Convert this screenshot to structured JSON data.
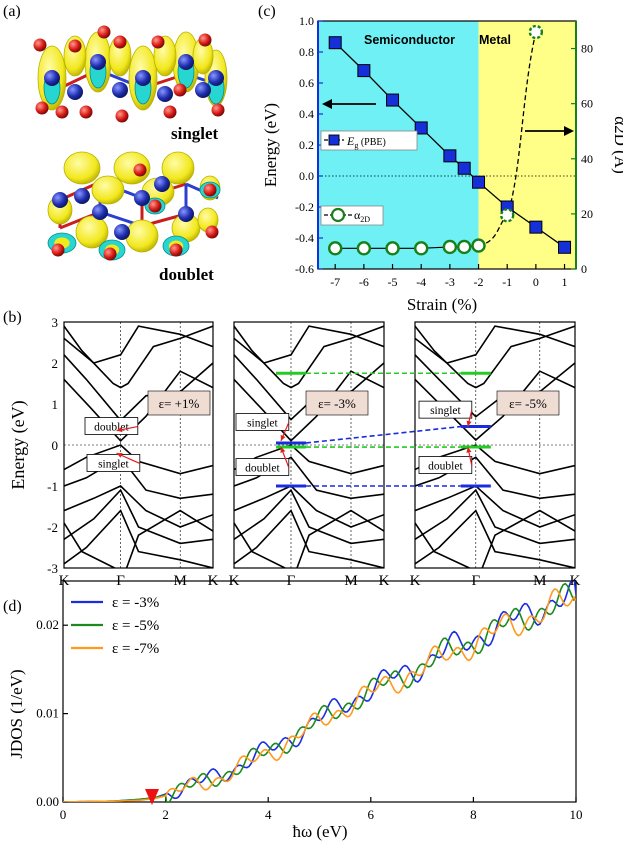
{
  "panels": {
    "a": {
      "label": "(a)",
      "state_labels": [
        "singlet",
        "doublet"
      ],
      "colors": {
        "isosurface": "#f2e81c",
        "isosurface_edge": "#b8b200",
        "cyan_section": "#27d6d0",
        "atom_blue": "#1f2fb0",
        "atom_red": "#d81a14",
        "bond_red": "#c81e1e",
        "bond_blue": "#2a3fd0"
      }
    },
    "b": {
      "label": "(b)",
      "ylabel": "Energy (eV)",
      "ylim": [
        -3,
        3
      ],
      "yticks": [
        "3",
        "2",
        "1",
        "0",
        "-1",
        "-2",
        "-3"
      ],
      "kpath": [
        "K",
        "Γ",
        "M",
        "K"
      ],
      "sub_panels": [
        {
          "strain_label": "ε= +1%",
          "annotations": [
            "doublet",
            "singlet"
          ]
        },
        {
          "strain_label": "ε= -3%",
          "annotations": [
            "singlet",
            "doublet"
          ]
        },
        {
          "strain_label": "ε= -5%",
          "annotations": [
            "singlet",
            "doublet"
          ]
        }
      ],
      "colors": {
        "bands": "#000000",
        "arrow": "#e02020",
        "label_box": "#efdcd2",
        "flat_green": "#22cc22",
        "flat_blue": "#1a2ce0"
      }
    }
  },
  "chart_data": [
    {
      "panel": "c",
      "label": "(c)",
      "type": "line",
      "xlabel": "Strain (%)",
      "ylabel": "Energy (eV)",
      "y2label": "α2D (Å)",
      "xlim": [
        -7.6,
        1.4
      ],
      "ylim": [
        -0.6,
        1.0
      ],
      "y2lim": [
        0,
        90
      ],
      "xticks": [
        -7,
        -6,
        -5,
        -4,
        -3,
        -2,
        -1,
        0,
        1
      ],
      "yticks": [
        -0.6,
        -0.4,
        -0.2,
        0.0,
        0.2,
        0.4,
        0.6,
        0.8,
        1.0
      ],
      "y2ticks": [
        0,
        20,
        40,
        60,
        80
      ],
      "regions": [
        {
          "name": "Semiconductor",
          "from": -7.6,
          "to": -2.0,
          "color": "#6ef0f5"
        },
        {
          "name": "Metal",
          "from": -2.0,
          "to": 1.4,
          "color": "#ffff88"
        }
      ],
      "series": [
        {
          "name": "Eg (PBE)",
          "legend_main": "E",
          "legend_sub": "g",
          "legend_suffix": " (PBE)",
          "axis": "left",
          "color": "#1530d8",
          "marker": "square",
          "x": [
            -7,
            -6,
            -5,
            -4,
            -3,
            -2.5,
            -2,
            -1,
            0,
            1
          ],
          "y": [
            0.86,
            0.68,
            0.49,
            0.31,
            0.13,
            0.05,
            -0.04,
            -0.2,
            -0.33,
            -0.46
          ]
        },
        {
          "name": "α2D",
          "legend_main": "α",
          "legend_sub": "2D",
          "legend_suffix": "",
          "axis": "right",
          "color": "#18801a",
          "marker": "circle",
          "x": [
            -7,
            -6,
            -5,
            -4,
            -3,
            -2.5,
            -2,
            -1,
            0
          ],
          "y": [
            7.5,
            7.5,
            7.5,
            7.5,
            8,
            8,
            8.5,
            19.5,
            86
          ]
        }
      ]
    },
    {
      "panel": "d",
      "label": "(d)",
      "type": "line",
      "xlabel": "ħω (eV)",
      "ylabel": "JDOS (1/eV)",
      "xlim": [
        0,
        10
      ],
      "ylim": [
        0,
        0.025
      ],
      "xticks": [
        0,
        2,
        4,
        6,
        8,
        10
      ],
      "yticks": [
        0.0,
        0.01,
        0.02
      ],
      "ytick_labels": [
        "0.00",
        "0.01",
        "0.02"
      ],
      "marker_annotation": {
        "x": 1.75,
        "color": "#ee1111"
      },
      "series": [
        {
          "name": "ε = -3%",
          "color": "#1a2ee0",
          "x": [
            0,
            1,
            1.5,
            1.8,
            2.0,
            2.2,
            2.6,
            3.0,
            3.5,
            4.0,
            4.5,
            5.0,
            5.5,
            6.0,
            6.5,
            7.0,
            7.5,
            8.0,
            8.5,
            9.0,
            9.5,
            10.0
          ],
          "y": [
            0,
            0.0001,
            0.0003,
            0.0005,
            0.0009,
            0.0015,
            0.002,
            0.003,
            0.0043,
            0.0058,
            0.0075,
            0.0093,
            0.0112,
            0.0127,
            0.0143,
            0.0155,
            0.0172,
            0.0185,
            0.0198,
            0.0212,
            0.0225,
            0.0235
          ]
        },
        {
          "name": "ε = -5%",
          "color": "#1c8a1c",
          "x": [
            0,
            1,
            1.5,
            1.8,
            2.0,
            2.2,
            2.6,
            3.0,
            3.5,
            4.0,
            4.5,
            5.0,
            5.5,
            6.0,
            6.5,
            7.0,
            7.5,
            8.0,
            8.5,
            9.0,
            9.5,
            10.0
          ],
          "y": [
            0,
            0.0001,
            0.0003,
            0.0005,
            0.0008,
            0.0013,
            0.0019,
            0.0028,
            0.0042,
            0.0057,
            0.0074,
            0.0092,
            0.011,
            0.0125,
            0.014,
            0.0153,
            0.017,
            0.0182,
            0.0196,
            0.021,
            0.0222,
            0.023
          ]
        },
        {
          "name": "ε = -7%",
          "color": "#ff9a1c",
          "x": [
            0,
            1,
            1.5,
            1.8,
            2.0,
            2.2,
            2.6,
            3.0,
            3.5,
            4.0,
            4.5,
            5.0,
            5.5,
            6.0,
            6.5,
            7.0,
            7.5,
            8.0,
            8.5,
            9.0,
            9.5,
            10.0
          ],
          "y": [
            0,
            0.0001,
            0.0002,
            0.0004,
            0.0007,
            0.0012,
            0.0018,
            0.0027,
            0.004,
            0.0055,
            0.0072,
            0.009,
            0.0108,
            0.0123,
            0.0138,
            0.0151,
            0.0167,
            0.018,
            0.0194,
            0.0207,
            0.022,
            0.0228
          ]
        }
      ]
    }
  ]
}
